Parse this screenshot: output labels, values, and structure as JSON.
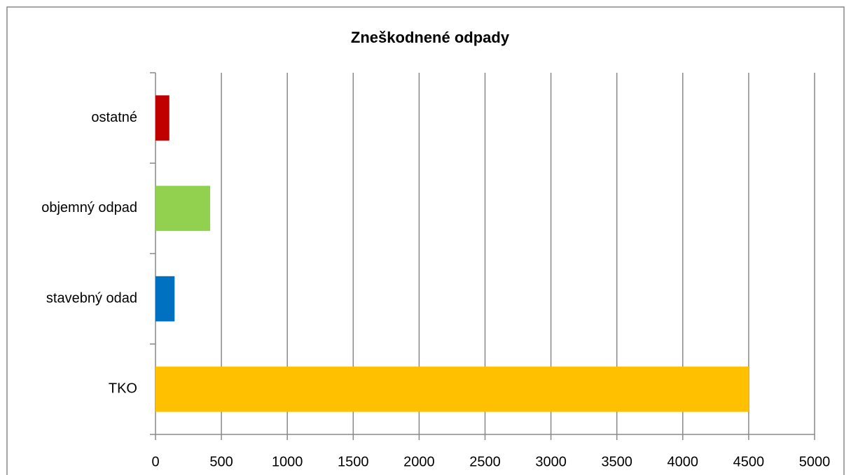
{
  "chart_data": {
    "type": "bar",
    "orientation": "horizontal",
    "title": "Zneškodnené odpady",
    "categories": [
      "TKO",
      "stavebný odad",
      "objemný odpad",
      "ostatné"
    ],
    "values": [
      4500,
      145,
      415,
      105
    ],
    "colors": [
      "#ffc000",
      "#0070c0",
      "#92d050",
      "#c00000"
    ],
    "xlim": [
      0,
      5000
    ],
    "xticks": [
      0,
      500,
      1000,
      1500,
      2000,
      2500,
      3000,
      3500,
      4000,
      4500,
      5000
    ],
    "grid": true
  }
}
